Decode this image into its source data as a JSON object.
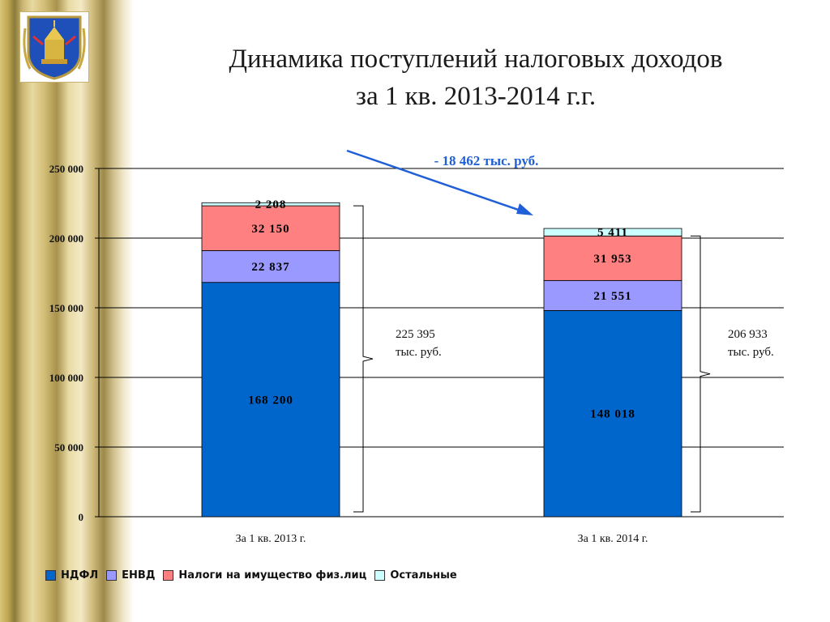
{
  "title_line1": "Динамика поступлений налоговых доходов",
  "title_line2": "за 1 кв. 2013-2014 г.г.",
  "delta_label": "- 18 462 тыс. руб.",
  "totals": [
    {
      "value": "225 395",
      "unit": "тыс. руб."
    },
    {
      "value": "206 933",
      "unit": "тыс. руб."
    }
  ],
  "colors": {
    "ndfl": "#0066cc",
    "envd": "#9999ff",
    "property": "#ff8080",
    "other": "#ccffff",
    "arrow": "#1f5fd8"
  },
  "chart_data": {
    "type": "bar",
    "stacked": true,
    "categories": [
      "За 1 кв. 2013 г.",
      "За 1 кв. 2014 г."
    ],
    "series": [
      {
        "name": "НДФЛ",
        "values": [
          168200,
          148018
        ],
        "labels": [
          "168 200",
          "148 018"
        ],
        "color": "#0066cc"
      },
      {
        "name": "ЕНВД",
        "values": [
          22837,
          21551
        ],
        "labels": [
          "22 837",
          "21 551"
        ],
        "color": "#9999ff"
      },
      {
        "name": "Налоги на имущество физ.лиц",
        "values": [
          32150,
          31953
        ],
        "labels": [
          "32 150",
          "31 953"
        ],
        "color": "#ff8080"
      },
      {
        "name": "Остальные",
        "values": [
          2208,
          5411
        ],
        "labels": [
          "2 208",
          "5 411"
        ],
        "color": "#ccffff"
      }
    ],
    "ylim": [
      0,
      250000
    ],
    "yticks": [
      0,
      50000,
      100000,
      150000,
      200000,
      250000
    ],
    "ytick_labels": [
      "0",
      "50 000",
      "100 000",
      "150 000",
      "200 000",
      "250 000"
    ],
    "grid": true,
    "legend_position": "bottom"
  }
}
